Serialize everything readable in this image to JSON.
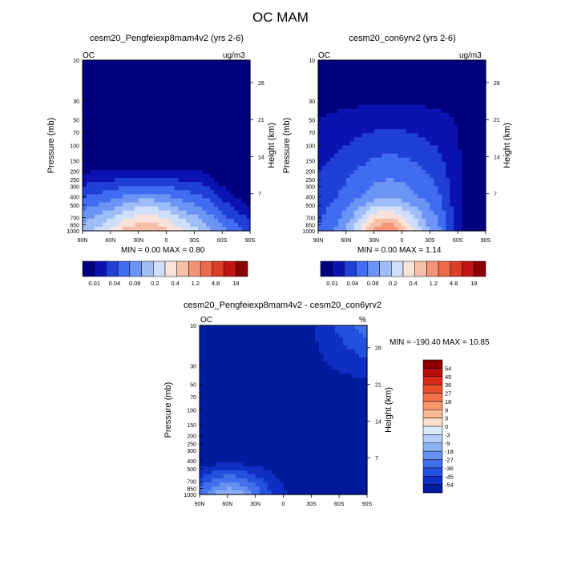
{
  "figure": {
    "title": "OC MAM"
  },
  "chart_data": [
    {
      "type": "contour",
      "title": "cesm20_Pengfeiexp8mam4v2 (yrs 2-6)",
      "variable": "OC",
      "units": "ug/m3",
      "ylabel": "Pressure (mb)",
      "ylabel_right": "Height (km)",
      "x_ticks": [
        "90N",
        "60N",
        "30N",
        "0",
        "30S",
        "60S",
        "90S"
      ],
      "y_ticks": [
        "10",
        "30",
        "50",
        "70",
        "100",
        "150",
        "200",
        "250",
        "300",
        "400",
        "500",
        "700",
        "850",
        "1000"
      ],
      "y_right_ticks": [
        "28",
        "21",
        "14",
        "7"
      ],
      "ylim_mb": [
        10,
        1000
      ],
      "min_text": "MIN =   0.00   MAX =   0.80",
      "min": 0.0,
      "max": 0.8,
      "colorbar": {
        "orientation": "horizontal",
        "labels": [
          "0.01",
          "0.04",
          "0.08",
          "0.2",
          "0.4",
          "1.2",
          "4.8",
          "18"
        ],
        "colors": [
          "#00007f",
          "#0b12b0",
          "#1f3fd6",
          "#3f6cf0",
          "#6b94f5",
          "#9ebcf8",
          "#cfdffb",
          "#f9e3d8",
          "#f7bfa7",
          "#f39479",
          "#ec6a4c",
          "#de3d26",
          "#c01512",
          "#8a0000"
        ]
      },
      "field": "left"
    },
    {
      "type": "contour",
      "title": "cesm20_con6yrv2 (yrs 2-6)",
      "variable": "OC",
      "units": "ug/m3",
      "ylabel": "Pressure (mb)",
      "ylabel_right": "Height (km)",
      "x_ticks": [
        "90N",
        "60N",
        "30N",
        "0",
        "30S",
        "60S",
        "90S"
      ],
      "y_ticks": [
        "10",
        "30",
        "50",
        "70",
        "100",
        "150",
        "200",
        "250",
        "300",
        "400",
        "500",
        "700",
        "850",
        "1000"
      ],
      "y_right_ticks": [
        "28",
        "21",
        "14",
        "7"
      ],
      "ylim_mb": [
        10,
        1000
      ],
      "min_text": "MIN =   0.00   MAX =   1.14",
      "min": 0.0,
      "max": 1.14,
      "colorbar": {
        "orientation": "horizontal",
        "labels": [
          "0.01",
          "0.04",
          "0.08",
          "0.2",
          "0.4",
          "1.2",
          "4.8",
          "18"
        ],
        "colors": [
          "#00007f",
          "#0b12b0",
          "#1f3fd6",
          "#3f6cf0",
          "#6b94f5",
          "#9ebcf8",
          "#cfdffb",
          "#f9e3d8",
          "#f7bfa7",
          "#f39479",
          "#ec6a4c",
          "#de3d26",
          "#c01512",
          "#8a0000"
        ]
      },
      "field": "right"
    },
    {
      "type": "contour",
      "title": "cesm20_Pengfeiexp8mam4v2 - cesm20_con6yrv2",
      "variable": "OC",
      "units": "%",
      "ylabel": "Pressure (mb)",
      "ylabel_right": "Height (km)",
      "x_ticks": [
        "90N",
        "60N",
        "30N",
        "0",
        "30S",
        "60S",
        "90S"
      ],
      "y_ticks": [
        "10",
        "30",
        "50",
        "70",
        "100",
        "150",
        "200",
        "250",
        "300",
        "400",
        "500",
        "700",
        "850",
        "1000"
      ],
      "y_right_ticks": [
        "28",
        "21",
        "14",
        "7"
      ],
      "ylim_mb": [
        10,
        1000
      ],
      "min_text": "MIN = -190.40   MAX =  10.85",
      "min": -190.4,
      "max": 10.85,
      "colorbar": {
        "orientation": "vertical",
        "labels": [
          "54",
          "45",
          "36",
          "27",
          "18",
          "9",
          "3",
          "0",
          "-3",
          "-9",
          "-18",
          "-27",
          "-36",
          "-45",
          "-54"
        ],
        "colors": [
          "#8a0000",
          "#b80d0d",
          "#d62a1a",
          "#ea4f2c",
          "#f47249",
          "#f8966c",
          "#fbb996",
          "#fde1cd",
          "#dbe8fb",
          "#b6cdf8",
          "#8cb0f4",
          "#6791f0",
          "#4270ea",
          "#2350de",
          "#0e2ec4",
          "#001a9c"
        ]
      },
      "field": "diff"
    }
  ]
}
